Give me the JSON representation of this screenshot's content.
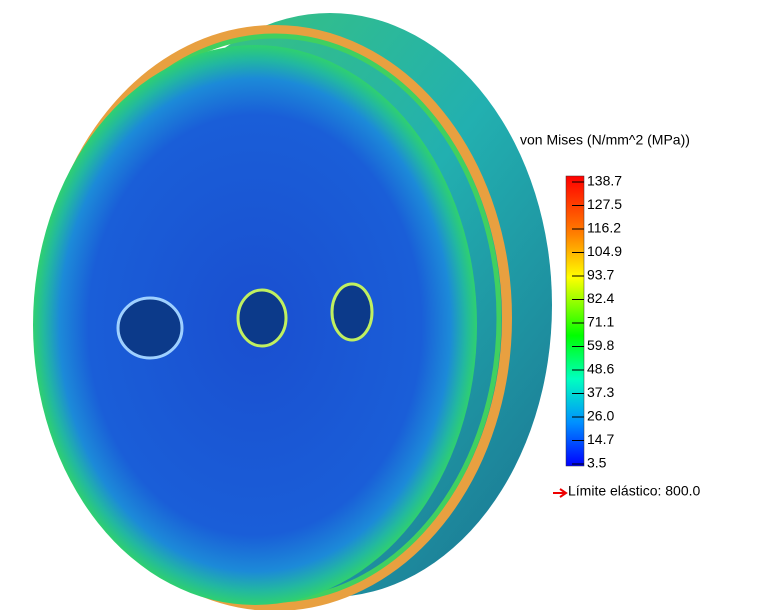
{
  "legend": {
    "title": "von Mises (N/mm^2 (MPa))",
    "ticks": [
      "138.7",
      "127.5",
      "116.2",
      "104.9",
      "93.7",
      "82.4",
      "71.1",
      "59.8",
      "48.6",
      "37.3",
      "26.0",
      "14.7",
      "3.5"
    ],
    "yield_limit": "Límite elástico: 800.0"
  }
}
